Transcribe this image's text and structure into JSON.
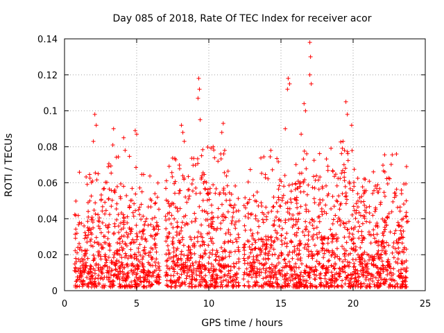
{
  "chart_data": {
    "type": "scatter",
    "title": "Day 085 of 2018, Rate Of TEC Index for receiver acor",
    "xlabel": "GPS time / hours",
    "ylabel": "ROTI / TECUs",
    "xlim": [
      0,
      25
    ],
    "ylim": [
      0,
      0.14
    ],
    "x_ticks": [
      0,
      5,
      10,
      15,
      20,
      25
    ],
    "y_ticks": [
      0,
      0.02,
      0.04,
      0.06,
      0.08,
      0.1,
      0.12,
      0.14
    ],
    "x_tick_labels": [
      "0",
      "5",
      "10",
      "15",
      "20",
      "25"
    ],
    "y_tick_labels": [
      "0",
      "0.02",
      "0.04",
      "0.06",
      "0.08",
      "0.1",
      "0.12",
      "0.14"
    ],
    "grid": true,
    "marker": "+",
    "color": "#ff0000",
    "series": [
      {
        "name": "ROTI",
        "x_range": [
          0.7,
          23.8
        ],
        "gaps": [
          [
            6.6,
            7.0
          ],
          [
            12.1,
            12.4
          ]
        ],
        "baseline_envelope": [
          [
            0.7,
            0.045
          ],
          [
            1.5,
            0.04
          ],
          [
            2.5,
            0.05
          ],
          [
            3.5,
            0.055
          ],
          [
            4.5,
            0.05
          ],
          [
            5.5,
            0.04
          ],
          [
            6.5,
            0.045
          ],
          [
            7.5,
            0.05
          ],
          [
            8.5,
            0.055
          ],
          [
            9.5,
            0.055
          ],
          [
            10.5,
            0.055
          ],
          [
            11.5,
            0.05
          ],
          [
            12.5,
            0.04
          ],
          [
            13.5,
            0.05
          ],
          [
            14.5,
            0.05
          ],
          [
            15.5,
            0.05
          ],
          [
            16.5,
            0.06
          ],
          [
            17.5,
            0.055
          ],
          [
            18.5,
            0.055
          ],
          [
            19.5,
            0.06
          ],
          [
            20.5,
            0.045
          ],
          [
            21.5,
            0.045
          ],
          [
            22.5,
            0.055
          ],
          [
            23.5,
            0.045
          ]
        ],
        "peaks": [
          {
            "x": 2.1,
            "y": 0.098
          },
          {
            "x": 2.2,
            "y": 0.092
          },
          {
            "x": 2.0,
            "y": 0.083
          },
          {
            "x": 3.4,
            "y": 0.09
          },
          {
            "x": 3.35,
            "y": 0.081
          },
          {
            "x": 4.1,
            "y": 0.085
          },
          {
            "x": 4.2,
            "y": 0.078
          },
          {
            "x": 4.9,
            "y": 0.089
          },
          {
            "x": 5.0,
            "y": 0.087
          },
          {
            "x": 8.1,
            "y": 0.092
          },
          {
            "x": 8.2,
            "y": 0.088
          },
          {
            "x": 8.3,
            "y": 0.083
          },
          {
            "x": 9.3,
            "y": 0.118
          },
          {
            "x": 9.35,
            "y": 0.112
          },
          {
            "x": 9.25,
            "y": 0.107
          },
          {
            "x": 9.4,
            "y": 0.095
          },
          {
            "x": 9.5,
            "y": 0.075
          },
          {
            "x": 10.3,
            "y": 0.08
          },
          {
            "x": 11.0,
            "y": 0.093
          },
          {
            "x": 10.9,
            "y": 0.088
          },
          {
            "x": 11.1,
            "y": 0.078
          },
          {
            "x": 14.3,
            "y": 0.078
          },
          {
            "x": 15.3,
            "y": 0.09
          },
          {
            "x": 15.5,
            "y": 0.118
          },
          {
            "x": 15.6,
            "y": 0.115
          },
          {
            "x": 15.45,
            "y": 0.112
          },
          {
            "x": 16.4,
            "y": 0.087
          },
          {
            "x": 16.6,
            "y": 0.104
          },
          {
            "x": 16.7,
            "y": 0.1
          },
          {
            "x": 17.0,
            "y": 0.138
          },
          {
            "x": 17.05,
            "y": 0.13
          },
          {
            "x": 17.0,
            "y": 0.12
          },
          {
            "x": 17.1,
            "y": 0.115
          },
          {
            "x": 19.5,
            "y": 0.105
          },
          {
            "x": 19.6,
            "y": 0.098
          },
          {
            "x": 19.3,
            "y": 0.083
          },
          {
            "x": 19.4,
            "y": 0.078
          },
          {
            "x": 19.9,
            "y": 0.092
          },
          {
            "x": 22.2,
            "y": 0.066
          },
          {
            "x": 23.0,
            "y": 0.076
          },
          {
            "x": 23.7,
            "y": 0.069
          }
        ]
      }
    ]
  }
}
